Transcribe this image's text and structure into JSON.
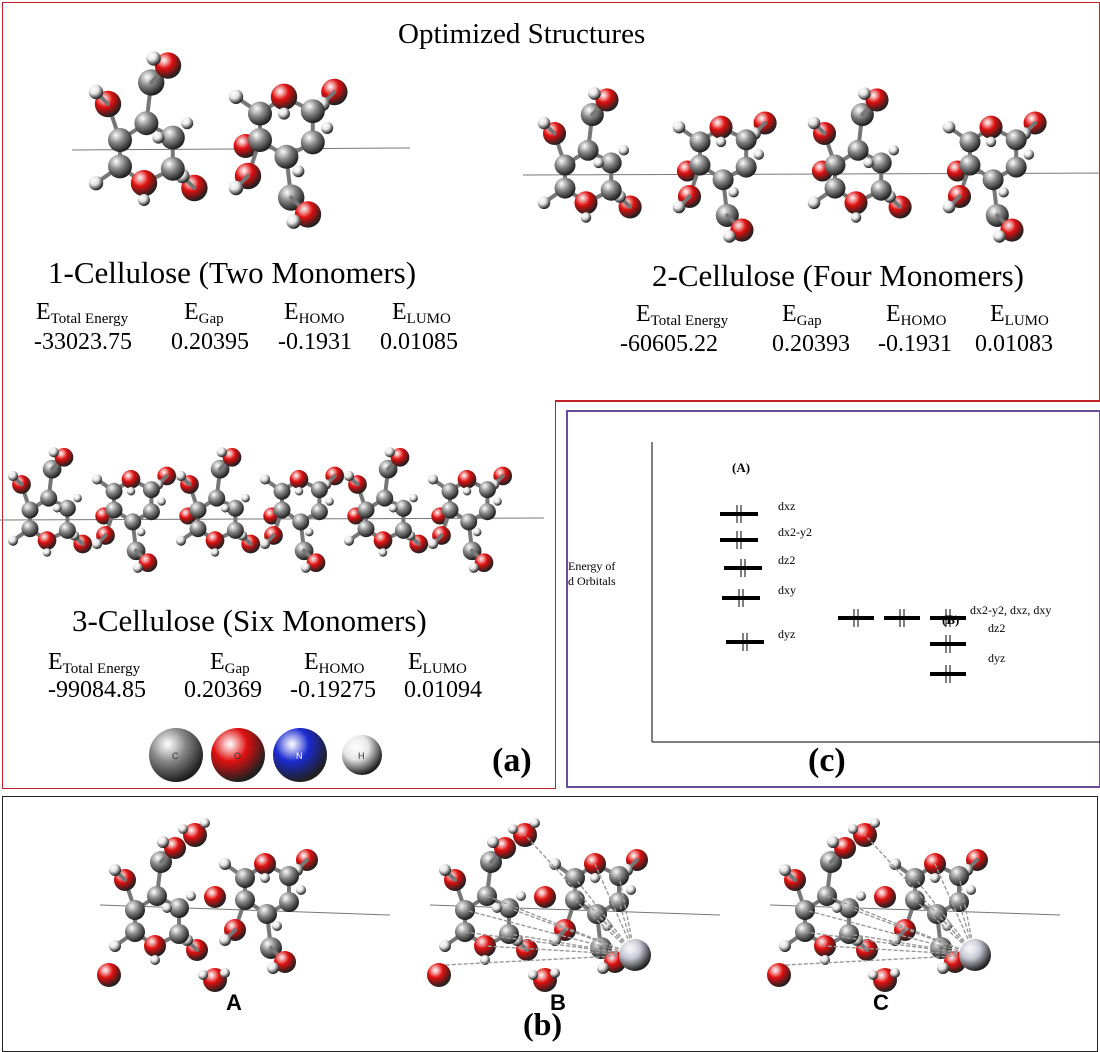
{
  "panel_a": {
    "heading": "Optimized Structures",
    "tag": "(a)",
    "molecules": [
      {
        "title": "1-Cellulose (Two Monomers)",
        "headers": [
          {
            "base": "E",
            "sub": "Total Energy"
          },
          {
            "base": "E",
            "sub": "Gap"
          },
          {
            "base": "E",
            "sub": "HOMO"
          },
          {
            "base": "E",
            "sub": "LUMO"
          }
        ],
        "values": [
          "-33023.75",
          "0.20395",
          "-0.1931",
          "0.01085"
        ]
      },
      {
        "title": "2-Cellulose (Four Monomers)",
        "headers": [
          {
            "base": "E",
            "sub": "Total Energy"
          },
          {
            "base": "E",
            "sub": "Gap"
          },
          {
            "base": "E",
            "sub": "HOMO"
          },
          {
            "base": "E",
            "sub": "LUMO"
          }
        ],
        "values": [
          "-60605.22",
          "0.20393",
          "-0.1931",
          "0.01083"
        ]
      },
      {
        "title": "3-Cellulose (Six Monomers)",
        "headers": [
          {
            "base": "E",
            "sub": "Total Energy"
          },
          {
            "base": "E",
            "sub": "Gap"
          },
          {
            "base": "E",
            "sub": "HOMO"
          },
          {
            "base": "E",
            "sub": "LUMO"
          }
        ],
        "values": [
          "-99084.85",
          "0.20369",
          "-0.19275",
          "0.01094"
        ]
      }
    ],
    "atom_legend": [
      {
        "letter": "C",
        "color": "#8a8a8a"
      },
      {
        "letter": "O",
        "color": "#e01010"
      },
      {
        "letter": "N",
        "color": "#1a2ad0"
      },
      {
        "letter": "H",
        "color": "#e6e6e6"
      }
    ]
  },
  "panel_c": {
    "tag": "(c)",
    "y_axis_label_line1": "Energy of",
    "y_axis_label_line2": "d Orbitals",
    "group_a_label": "(A)",
    "group_b_label": "(B)",
    "group_a_orbitals": [
      "dxz",
      "dx2-y2",
      "dz2",
      "dxy",
      "dyz"
    ],
    "group_b_orbitals": [
      "dx2-y2, dxz, dxy",
      "dz2",
      "dyz"
    ]
  },
  "panel_b": {
    "tag": "(b)",
    "structures": [
      "A",
      "B",
      "C"
    ]
  },
  "colors": {
    "carbon": "#8a8a8a",
    "oxygen": "#e01010",
    "hydrogen": "#e6e6e6",
    "metal": "#c9c9d6",
    "red_border": "#c0202a",
    "purple_border": "#6a4c9c"
  }
}
